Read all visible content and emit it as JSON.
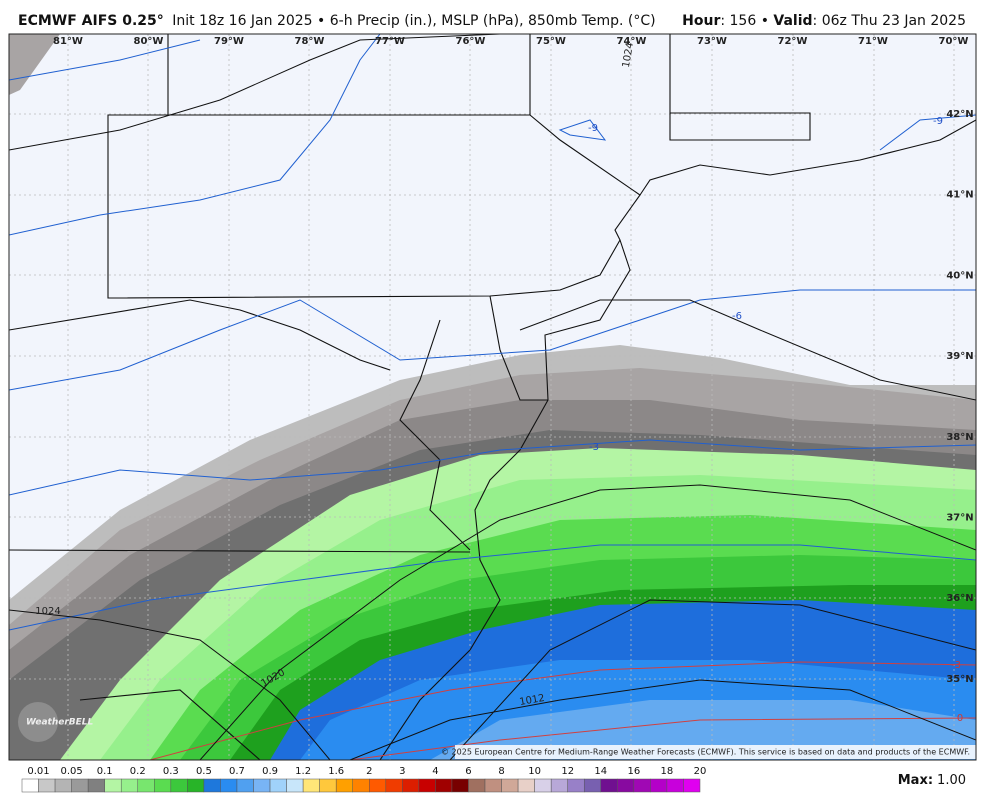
{
  "header": {
    "model": "ECMWF AIFS 0.25°",
    "description": "Init 18z 16 Jan 2025 • 6-h Precip (in.), MSLP (hPa), 850mb Temp. (°C)",
    "hour_label": "Hour",
    "hour_value": ": 156 • ",
    "valid_label": "Valid",
    "valid_value": ": 06z Thu 23 Jan 2025"
  },
  "map": {
    "longitude_labels": [
      "81°W",
      "80°W",
      "79°W",
      "78°W",
      "77°W",
      "76°W",
      "75°W",
      "74°W",
      "73°W",
      "72°W",
      "71°W",
      "70°W"
    ],
    "latitude_labels": [
      "42°N",
      "41°N",
      "40°N",
      "39°N",
      "38°N",
      "37°N",
      "36°N",
      "35°N"
    ],
    "contour_labels": [
      {
        "text": "1024",
        "color": "#222222"
      },
      {
        "text": "-9",
        "color": "#2050c8"
      },
      {
        "text": "-9",
        "color": "#2050c8"
      },
      {
        "text": "-6",
        "color": "#2050c8"
      },
      {
        "text": "-3",
        "color": "#2050c8"
      },
      {
        "text": "1024",
        "color": "#222222"
      },
      {
        "text": "1020",
        "color": "#222222"
      },
      {
        "text": "1012",
        "color": "#222222"
      },
      {
        "text": "-3",
        "color": "#c83c3c"
      },
      {
        "text": "0",
        "color": "#c83c3c"
      }
    ],
    "logo": "WeatherBELL",
    "copyright": "© 2025 European Centre for Medium-Range Weather Forecasts (ECMWF). This service is based on data and products of the ECMWF."
  },
  "colorbar": {
    "labels": [
      "0.01",
      "0.05",
      "0.1",
      "0.2",
      "0.3",
      "0.5",
      "0.7",
      "0.9",
      "1.2",
      "1.6",
      "2",
      "3",
      "4",
      "6",
      "8",
      "10",
      "12",
      "14",
      "16",
      "18",
      "20"
    ],
    "colors": [
      "#ffffff",
      "#c8c8c8",
      "#b4b4b4",
      "#9a9a9a",
      "#808080",
      "#b4f5a4",
      "#96f08c",
      "#78e66e",
      "#5adc50",
      "#3cc83c",
      "#28b428",
      "#1e78dc",
      "#2a8cf0",
      "#50a0f0",
      "#78b4f5",
      "#a0d2fa",
      "#c8e6fa",
      "#ffe678",
      "#ffc83c",
      "#ffa000",
      "#ff8200",
      "#ff5a00",
      "#f03c00",
      "#dc1e00",
      "#c80000",
      "#a00000",
      "#780000",
      "#a07060",
      "#c09080",
      "#d0a898",
      "#e8d0c8",
      "#d8d0e8",
      "#b8a8d8",
      "#9880c8",
      "#7860b0",
      "#701090",
      "#880aa0",
      "#a008b4",
      "#b400c8",
      "#c800dc",
      "#e000f0"
    ]
  },
  "max": {
    "label": "Max:",
    "value": "1.00"
  }
}
